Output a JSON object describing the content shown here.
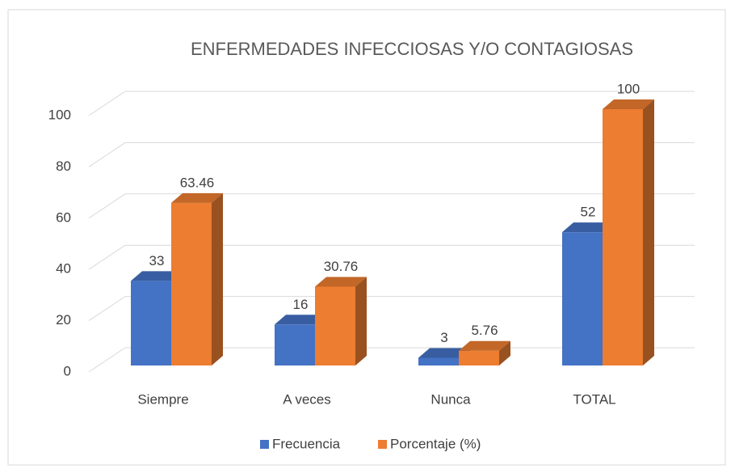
{
  "chart_data": {
    "type": "bar3d",
    "title": "ENFERMEDADES INFECCIOSAS Y/O CONTAGIOSAS",
    "categories": [
      "Siempre",
      "A veces",
      "Nunca",
      "TOTAL"
    ],
    "series": [
      {
        "name": "Frecuencia",
        "color": "#4472c4",
        "values": [
          33,
          16,
          3,
          52
        ]
      },
      {
        "name": "Porcentaje (%)",
        "color": "#ed7d31",
        "values": [
          63.46,
          30.76,
          5.76,
          100
        ]
      }
    ],
    "ylim": [
      0,
      100
    ],
    "yticks": [
      0,
      20,
      40,
      60,
      80,
      100
    ],
    "grid": true,
    "legend": "bottom"
  }
}
